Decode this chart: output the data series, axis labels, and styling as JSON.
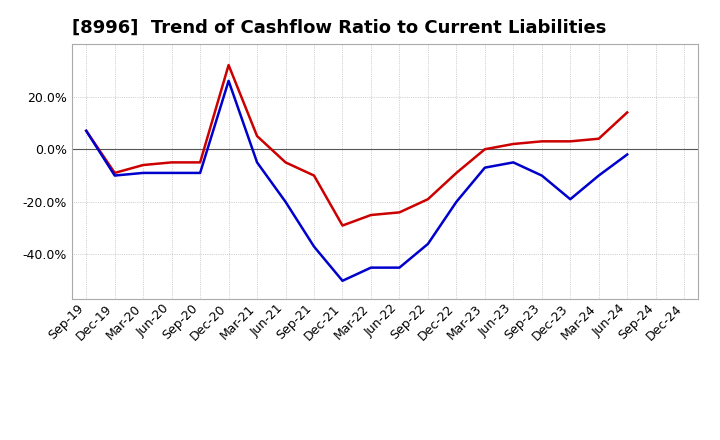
{
  "title": "[8996]  Trend of Cashflow Ratio to Current Liabilities",
  "x_labels": [
    "Sep-19",
    "Dec-19",
    "Mar-20",
    "Jun-20",
    "Sep-20",
    "Dec-20",
    "Mar-21",
    "Jun-21",
    "Sep-21",
    "Dec-21",
    "Mar-22",
    "Jun-22",
    "Sep-22",
    "Dec-22",
    "Mar-23",
    "Jun-23",
    "Sep-23",
    "Dec-23",
    "Mar-24",
    "Jun-24",
    "Sep-24",
    "Dec-24"
  ],
  "operating_cf": [
    0.07,
    -0.09,
    -0.06,
    -0.05,
    -0.05,
    0.32,
    0.05,
    -0.05,
    -0.1,
    -0.29,
    -0.25,
    -0.24,
    -0.19,
    -0.09,
    0.0,
    0.02,
    0.03,
    0.03,
    0.04,
    0.14,
    null,
    null
  ],
  "free_cf": [
    0.07,
    -0.1,
    -0.09,
    -0.09,
    -0.09,
    0.26,
    -0.05,
    -0.2,
    -0.37,
    -0.5,
    -0.45,
    -0.45,
    -0.36,
    -0.2,
    -0.07,
    -0.05,
    -0.1,
    -0.19,
    -0.1,
    -0.02,
    null,
    null
  ],
  "operating_color": "#cc0000",
  "free_color": "#0000cc",
  "ylim": [
    -0.57,
    0.4
  ],
  "yticks": [
    -0.4,
    -0.2,
    0.0,
    0.2
  ],
  "background_color": "#ffffff",
  "plot_bg_color": "#ffffff",
  "grid_color": "#aaaaaa",
  "title_fontsize": 13,
  "legend_fontsize": 9,
  "tick_fontsize": 9
}
